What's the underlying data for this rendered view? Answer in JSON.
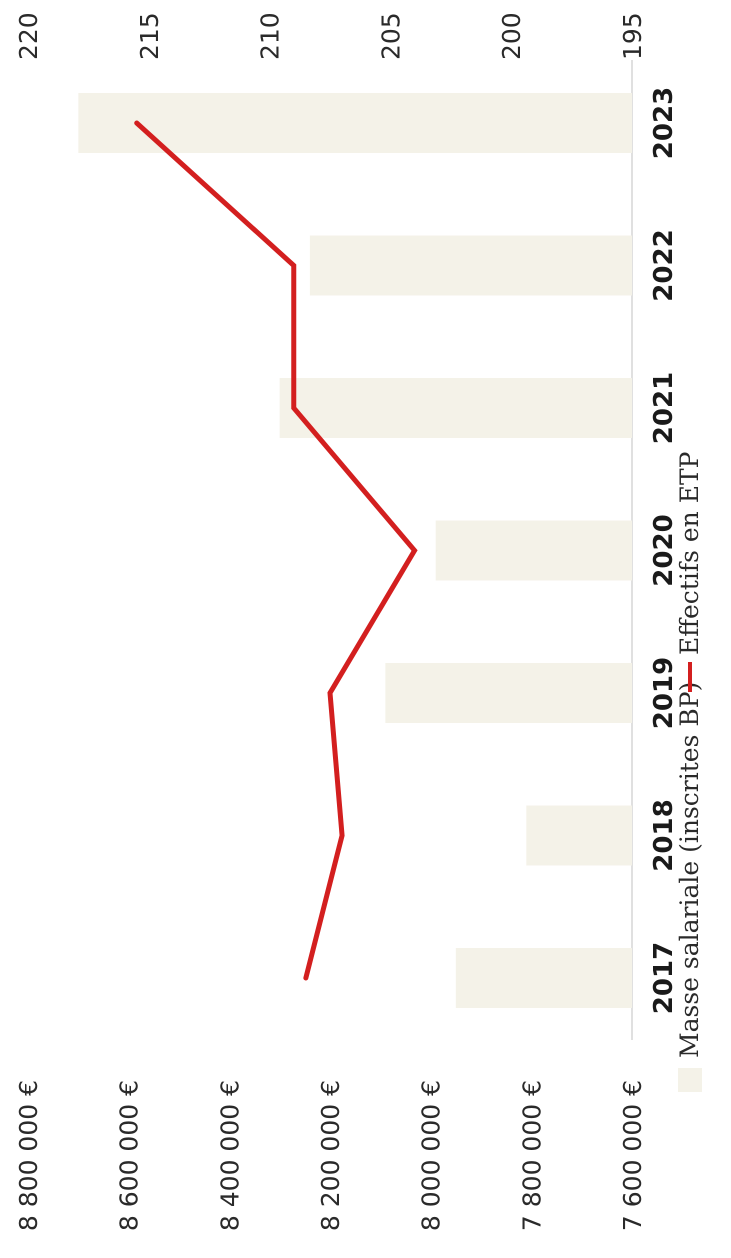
{
  "chart_data": {
    "type": "bar",
    "categories": [
      "2017",
      "2018",
      "2019",
      "2020",
      "2021",
      "2022",
      "2023"
    ],
    "series": [
      {
        "name": "Masse salariale (inscrites BP)",
        "type": "bar",
        "axis": "left",
        "values": [
          7950000,
          7810000,
          8090000,
          7990000,
          8300000,
          8240000,
          8700000
        ],
        "color": "#f4f2e8"
      },
      {
        "name": "Effectifs en ETP",
        "type": "line",
        "axis": "right",
        "values": [
          208.5,
          207.0,
          207.5,
          204.0,
          209.0,
          209.0,
          215.5
        ],
        "color": "#d31f1f"
      }
    ],
    "y_left": {
      "ticks": [
        "7 600 000 €",
        "7 800 000 €",
        "8 000 000 €",
        "8 200 000 €",
        "8 400 000 €",
        "8 600 000 €",
        "8 800 000 €"
      ],
      "range": [
        7600000,
        8800000
      ]
    },
    "y_right": {
      "ticks": [
        "195",
        "200",
        "205",
        "210",
        "215",
        "220"
      ],
      "range": [
        195,
        220
      ]
    },
    "legend_position": "bottom",
    "orientation": "rotated-90-clockwise"
  }
}
